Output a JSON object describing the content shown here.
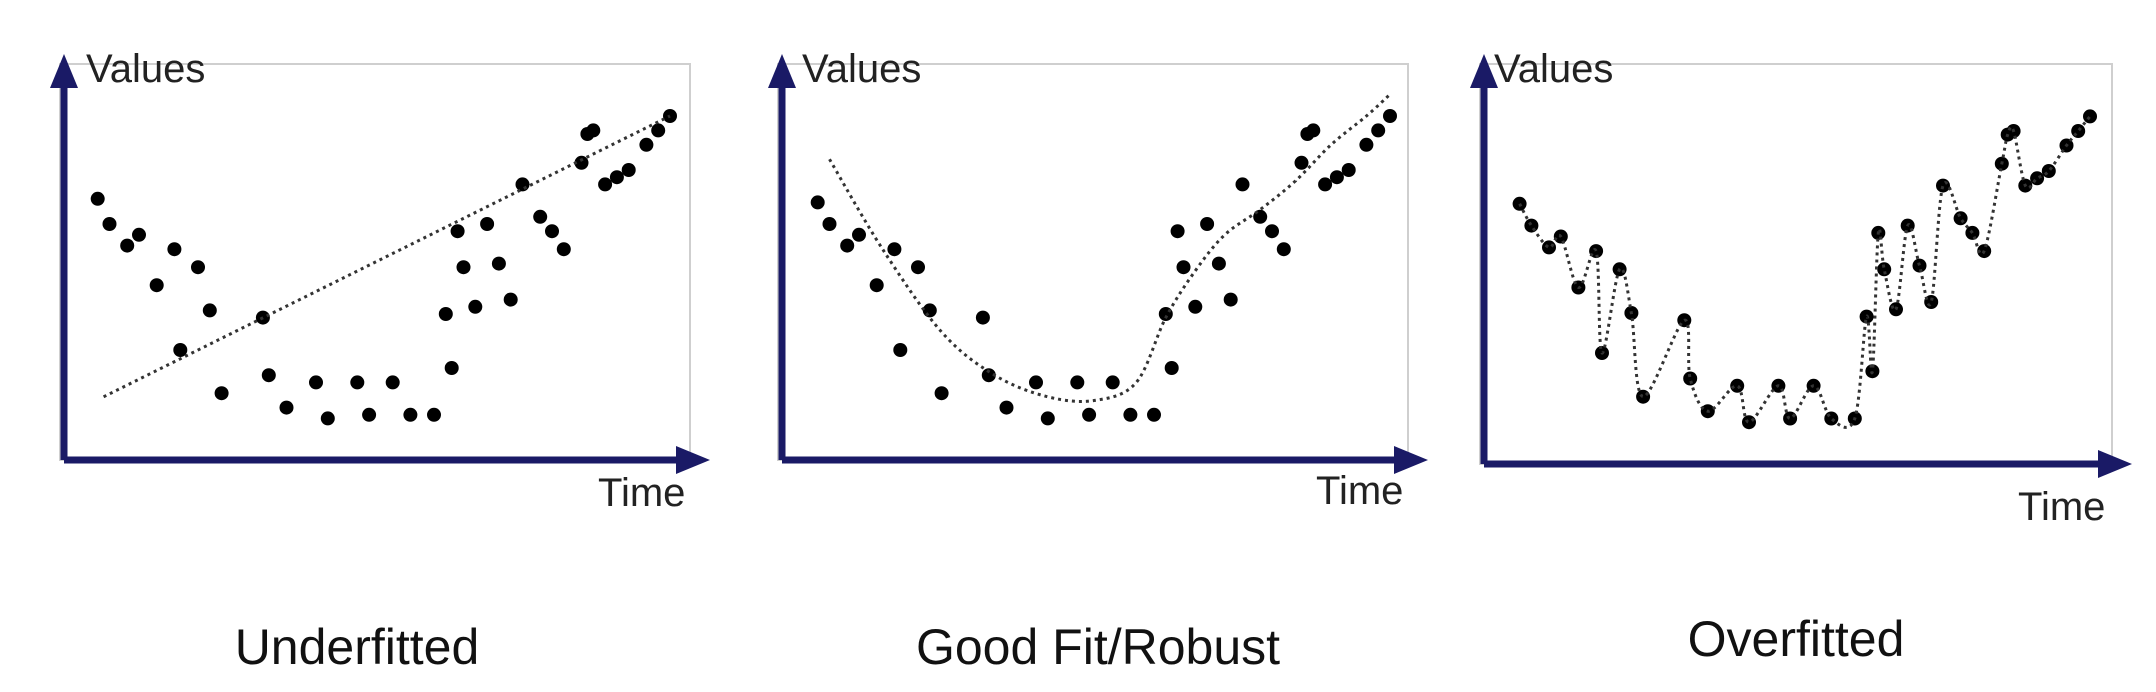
{
  "chart_data": [
    {
      "type": "scatter",
      "title": "Underfitted",
      "xlabel": "Time",
      "ylabel": "Values",
      "xlim": [
        0,
        100
      ],
      "ylim": [
        0,
        100
      ],
      "grid": false,
      "points": [
        [
          3,
          67
        ],
        [
          5,
          60
        ],
        [
          8,
          54
        ],
        [
          10,
          57
        ],
        [
          13,
          43
        ],
        [
          16,
          53
        ],
        [
          17,
          25
        ],
        [
          20,
          48
        ],
        [
          22,
          36
        ],
        [
          24,
          13
        ],
        [
          32,
          18
        ],
        [
          31,
          34
        ],
        [
          35,
          9
        ],
        [
          40,
          16
        ],
        [
          42,
          6
        ],
        [
          47,
          16
        ],
        [
          49,
          7
        ],
        [
          53,
          16
        ],
        [
          56,
          7
        ],
        [
          60,
          7
        ],
        [
          62,
          35
        ],
        [
          63,
          20
        ],
        [
          64,
          58
        ],
        [
          65,
          48
        ],
        [
          67,
          37
        ],
        [
          69,
          60
        ],
        [
          71,
          49
        ],
        [
          73,
          39
        ],
        [
          75,
          71
        ],
        [
          78,
          62
        ],
        [
          80,
          58
        ],
        [
          82,
          53
        ],
        [
          85,
          77
        ],
        [
          86,
          85
        ],
        [
          87,
          86
        ],
        [
          89,
          71
        ],
        [
          91,
          73
        ],
        [
          93,
          75
        ],
        [
          96,
          82
        ],
        [
          98,
          86
        ],
        [
          100,
          90
        ]
      ],
      "fit": {
        "style": "linear",
        "points": [
          [
            4,
            12
          ],
          [
            100,
            90
          ]
        ]
      }
    },
    {
      "type": "scatter",
      "title": "Good Fit/Robust",
      "xlabel": "Time",
      "ylabel": "Values",
      "xlim": [
        0,
        100
      ],
      "ylim": [
        0,
        100
      ],
      "grid": false,
      "points": [
        [
          3,
          66
        ],
        [
          5,
          60
        ],
        [
          8,
          54
        ],
        [
          10,
          57
        ],
        [
          13,
          43
        ],
        [
          16,
          53
        ],
        [
          17,
          25
        ],
        [
          20,
          48
        ],
        [
          22,
          36
        ],
        [
          24,
          13
        ],
        [
          32,
          18
        ],
        [
          31,
          34
        ],
        [
          35,
          9
        ],
        [
          40,
          16
        ],
        [
          42,
          6
        ],
        [
          47,
          16
        ],
        [
          49,
          7
        ],
        [
          53,
          16
        ],
        [
          56,
          7
        ],
        [
          60,
          7
        ],
        [
          62,
          35
        ],
        [
          63,
          20
        ],
        [
          64,
          58
        ],
        [
          65,
          48
        ],
        [
          67,
          37
        ],
        [
          69,
          60
        ],
        [
          71,
          49
        ],
        [
          73,
          39
        ],
        [
          75,
          71
        ],
        [
          78,
          62
        ],
        [
          80,
          58
        ],
        [
          82,
          53
        ],
        [
          85,
          77
        ],
        [
          86,
          85
        ],
        [
          87,
          86
        ],
        [
          89,
          71
        ],
        [
          91,
          73
        ],
        [
          93,
          75
        ],
        [
          96,
          82
        ],
        [
          98,
          86
        ],
        [
          100,
          90
        ]
      ],
      "fit": {
        "style": "smooth",
        "points": [
          [
            5,
            78
          ],
          [
            14,
            53
          ],
          [
            24,
            30
          ],
          [
            33,
            18
          ],
          [
            42,
            12
          ],
          [
            50,
            11
          ],
          [
            57,
            16
          ],
          [
            62,
            34
          ],
          [
            67,
            47
          ],
          [
            72,
            57
          ],
          [
            78,
            64
          ],
          [
            84,
            72
          ],
          [
            90,
            82
          ],
          [
            96,
            90
          ],
          [
            100,
            96
          ]
        ]
      }
    },
    {
      "type": "scatter",
      "title": "Overfitted",
      "xlabel": "Time",
      "ylabel": "Values",
      "xlim": [
        0,
        100
      ],
      "ylim": [
        0,
        100
      ],
      "grid": false,
      "points": [
        [
          3,
          66
        ],
        [
          5,
          60
        ],
        [
          8,
          54
        ],
        [
          10,
          57
        ],
        [
          13,
          43
        ],
        [
          16,
          53
        ],
        [
          17,
          25
        ],
        [
          20,
          48
        ],
        [
          22,
          36
        ],
        [
          24,
          13
        ],
        [
          32,
          18
        ],
        [
          31,
          34
        ],
        [
          35,
          9
        ],
        [
          40,
          16
        ],
        [
          42,
          6
        ],
        [
          47,
          16
        ],
        [
          49,
          7
        ],
        [
          53,
          16
        ],
        [
          56,
          7
        ],
        [
          60,
          7
        ],
        [
          62,
          35
        ],
        [
          63,
          20
        ],
        [
          64,
          58
        ],
        [
          65,
          48
        ],
        [
          67,
          37
        ],
        [
          69,
          60
        ],
        [
          71,
          49
        ],
        [
          73,
          39
        ],
        [
          75,
          71
        ],
        [
          78,
          62
        ],
        [
          80,
          58
        ],
        [
          82,
          53
        ],
        [
          85,
          77
        ],
        [
          86,
          85
        ],
        [
          87,
          86
        ],
        [
          89,
          71
        ],
        [
          91,
          73
        ],
        [
          93,
          75
        ],
        [
          96,
          82
        ],
        [
          98,
          86
        ],
        [
          100,
          90
        ]
      ],
      "fit": {
        "style": "interpolating",
        "points": []
      }
    }
  ]
}
